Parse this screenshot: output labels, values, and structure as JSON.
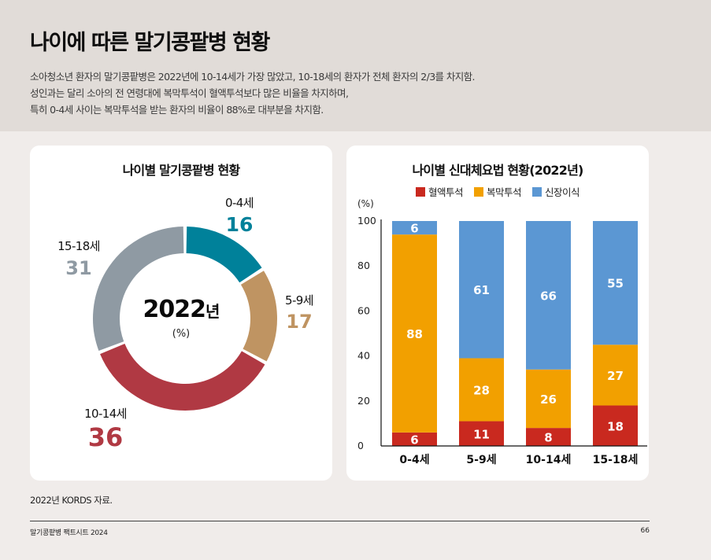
{
  "header": {
    "title": "나이에 따른 말기콩팥병 현황",
    "summary_lines": [
      "소아청소년 환자의 말기콩팥병은 2022년에 10-14세가 가장 많았고, 10-18세의 환자가 전체 환자의 2/3를 차지함.",
      "성인과는 달리 소아의 전 연령대에 복막투석이 혈액투석보다 많은 비율을 차지하며,",
      "특히 0-4세 사이는 복막투석을 받는 환자의 비율이 88%로 대부분을 차지함."
    ]
  },
  "chart_data": [
    {
      "type": "pie",
      "variant": "donut",
      "title": "나이별 말기콩팥병 현황",
      "center_label": "2022",
      "center_label_suffix": "년",
      "unit": "(%)",
      "start": "12 o'clock, clockwise",
      "slices": [
        {
          "label": "0-4세",
          "value": 16,
          "color": "#00819a"
        },
        {
          "label": "5-9세",
          "value": 17,
          "color": "#bf9462"
        },
        {
          "label": "10-14세",
          "value": 36,
          "color": "#b03943"
        },
        {
          "label": "15-18세",
          "value": 31,
          "color": "#8f9aa3"
        }
      ]
    },
    {
      "type": "bar",
      "stacked": true,
      "title": "나이별 신대체요법 현황(2022년)",
      "ylabel": "(%)",
      "xlabel": "",
      "ylim": [
        0,
        100
      ],
      "yticks": [
        0,
        20,
        40,
        60,
        80,
        100
      ],
      "grid": false,
      "legend_position": "top-center",
      "categories": [
        "0-4세",
        "5-9세",
        "10-14세",
        "15-18세"
      ],
      "series": [
        {
          "name": "혈액투석",
          "color": "#c9291f",
          "values": [
            6,
            11,
            8,
            18
          ]
        },
        {
          "name": "복막투석",
          "color": "#f2a000",
          "values": [
            88,
            28,
            26,
            27
          ]
        },
        {
          "name": "신장이식",
          "color": "#5b97d3",
          "values": [
            6,
            61,
            66,
            55
          ]
        }
      ]
    }
  ],
  "footnote": "2022년 KORDS 자료.",
  "footer": {
    "publication": "말기콩팥병 팩트시트 2024",
    "page_number": "66"
  }
}
